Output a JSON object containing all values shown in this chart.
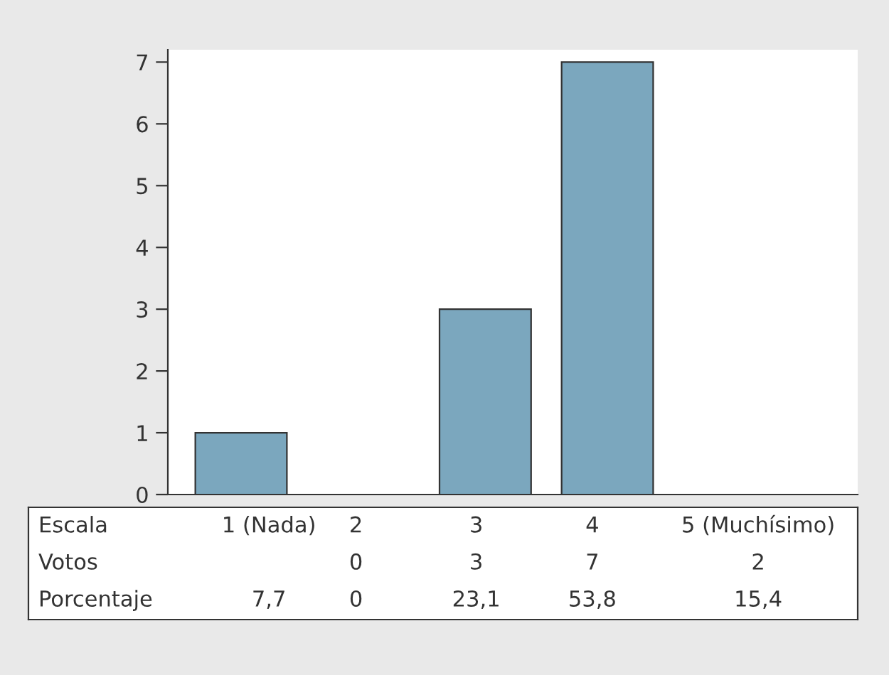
{
  "chart_data": {
    "type": "bar",
    "categories": [
      "1 (Nada)",
      "2",
      "3",
      "4",
      "5 (Muchísimo)"
    ],
    "values": [
      1,
      0,
      3,
      7,
      null
    ],
    "color": "#7ba7be",
    "value_labels": [
      null,
      "0",
      "3",
      "7",
      "2"
    ],
    "annotations": [
      "Escala",
      "Votos",
      "Porcentaje",
      "7,7",
      "0",
      "23,1",
      "53,8",
      "15,4"
    ],
    "ylim": [
      0,
      7.2
    ],
    "yticks": [
      0,
      1,
      2,
      3,
      4,
      5,
      6,
      7
    ],
    "grid": false,
    "legend": false
  }
}
